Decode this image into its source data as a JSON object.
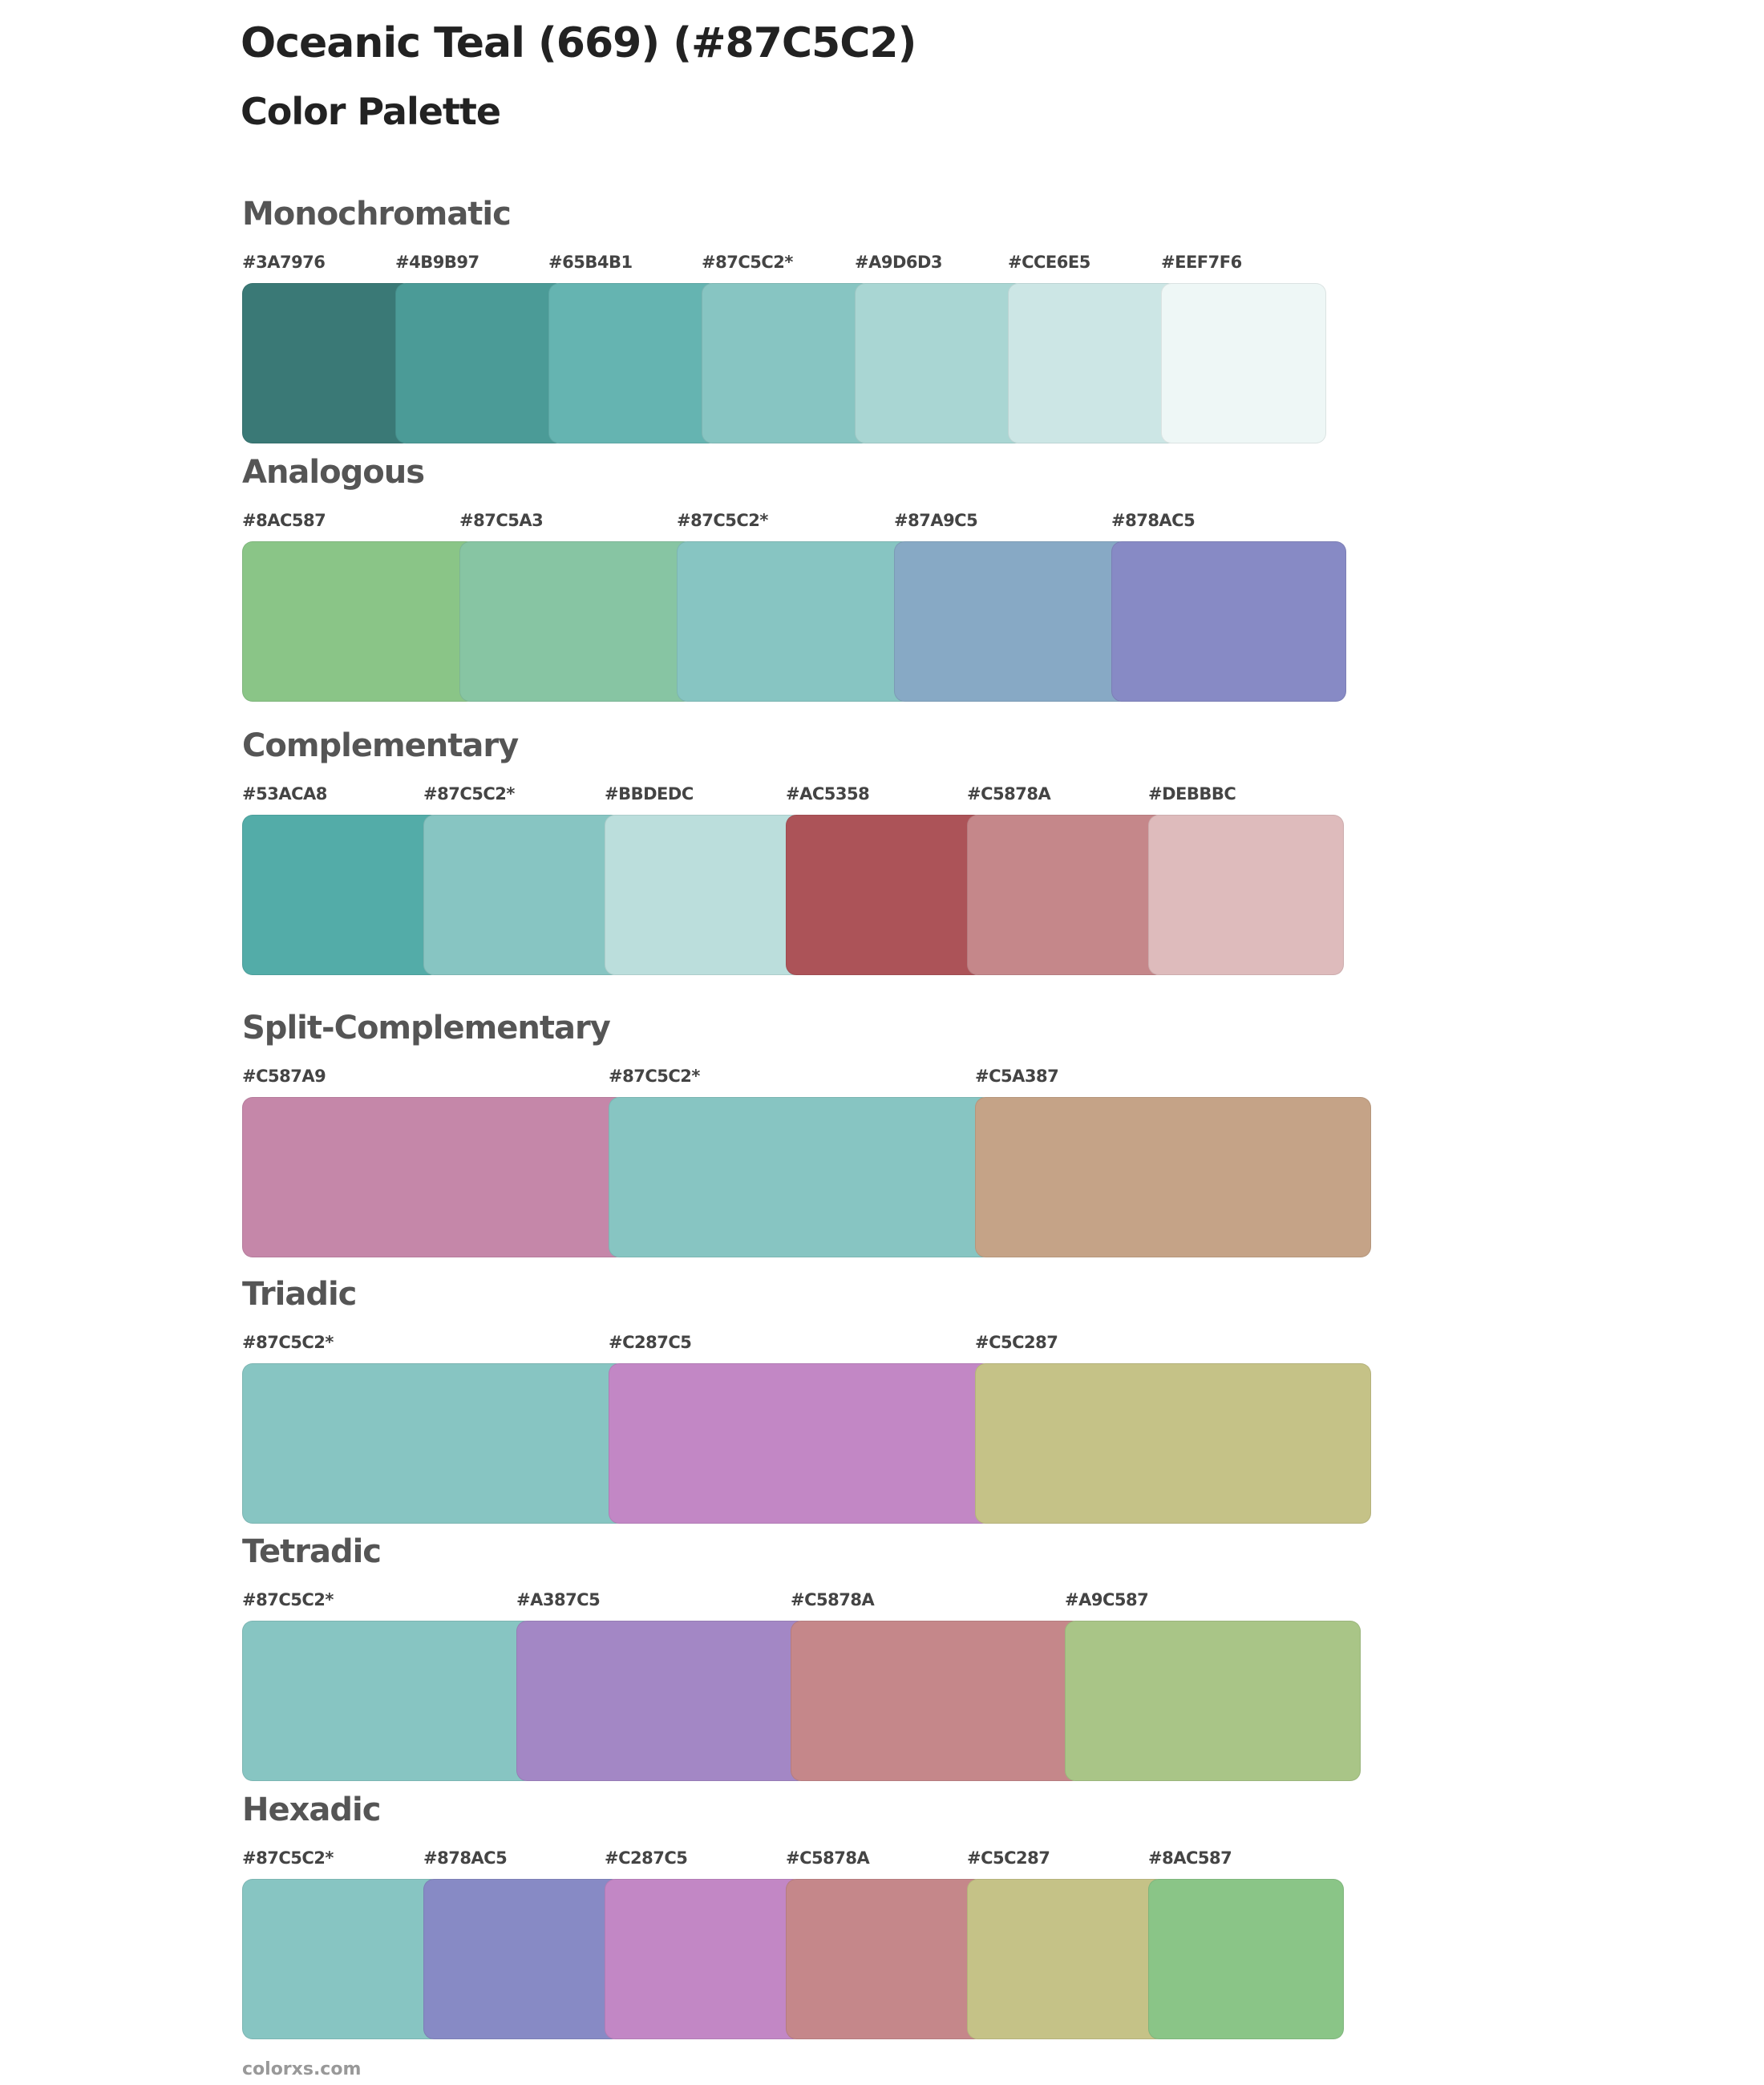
{
  "header": {
    "title": "Oceanic Teal (669) (#87C5C2)",
    "subtitle": "Color Palette"
  },
  "sections": [
    {
      "name": "Monochromatic",
      "colors": [
        "#3A7976",
        "#4B9B97",
        "#65B4B1",
        "#87C5C2*",
        "#A9D6D3",
        "#CCE6E5",
        "#EEF7F6"
      ]
    },
    {
      "name": "Analogous",
      "colors": [
        "#8AC587",
        "#87C5A3",
        "#87C5C2*",
        "#87A9C5",
        "#878AC5"
      ]
    },
    {
      "name": "Complementary",
      "colors": [
        "#53ACA8",
        "#87C5C2*",
        "#BBDEDC",
        "#AC5358",
        "#C5878A",
        "#DEBBBC"
      ]
    },
    {
      "name": "Split-Complementary",
      "colors": [
        "#C587A9",
        "#87C5C2*",
        "#C5A387"
      ]
    },
    {
      "name": "Triadic",
      "colors": [
        "#87C5C2*",
        "#C287C5",
        "#C5C287"
      ]
    },
    {
      "name": "Tetradic",
      "colors": [
        "#87C5C2*",
        "#A387C5",
        "#C5878A",
        "#A9C587"
      ]
    },
    {
      "name": "Hexadic",
      "colors": [
        "#87C5C2*",
        "#878AC5",
        "#C287C5",
        "#C5878A",
        "#C5C287",
        "#8AC587"
      ]
    }
  ],
  "footer": {
    "site": "colorxs.com"
  }
}
